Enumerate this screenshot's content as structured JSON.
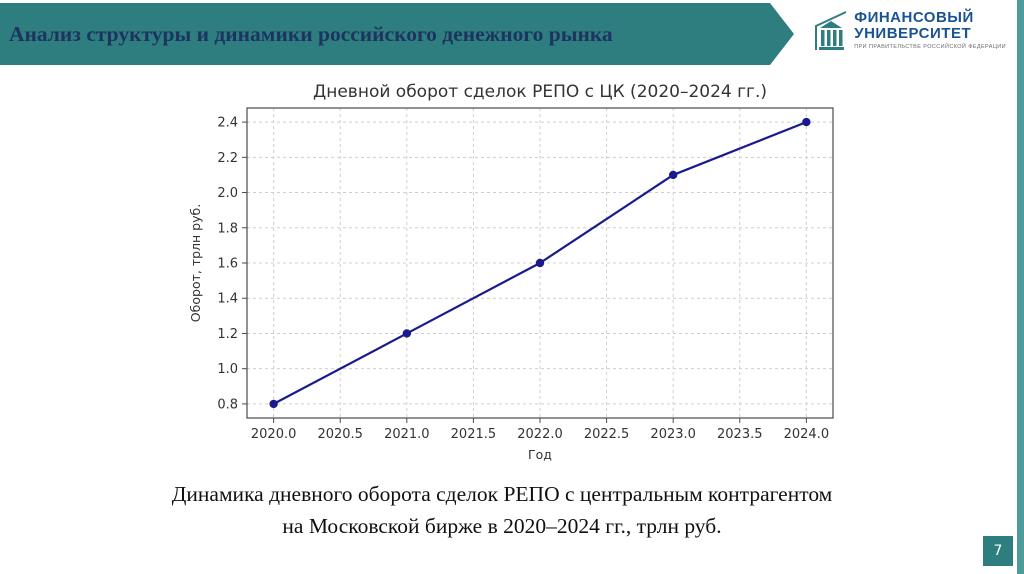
{
  "slide": {
    "title": "Анализ структуры и динамики российского денежного рынка",
    "page_number": "7",
    "accent_color": "#2e7d7f"
  },
  "header_logo": {
    "line1": "ФИНАНСОВЫЙ",
    "line2": "УНИВЕРСИТЕТ",
    "subtitle": "ПРИ ПРАВИТЕЛЬСТВЕ РОССИЙСКОЙ ФЕДЕРАЦИИ"
  },
  "caption": {
    "line1": "Динамика дневного оборота сделок РЕПО с центральным контрагентом",
    "line2": "на Московской бирже в 2020–2024 гг., трлн руб."
  },
  "chart_data": {
    "type": "line",
    "title": "Дневной оборот сделок РЕПО с ЦК (2020–2024 гг.)",
    "x": [
      2020,
      2021,
      2022,
      2023,
      2024
    ],
    "values": [
      0.8,
      1.2,
      1.6,
      2.1,
      2.4
    ],
    "xlabel": "Год",
    "ylabel": "Оборот, трлн руб.",
    "xlim": [
      2019.8,
      2024.2
    ],
    "ylim": [
      0.72,
      2.48
    ],
    "xticks": [
      2020.0,
      2020.5,
      2021.0,
      2021.5,
      2022.0,
      2022.5,
      2023.0,
      2023.5,
      2024.0
    ],
    "yticks": [
      0.8,
      1.0,
      1.2,
      1.4,
      1.6,
      1.8,
      2.0,
      2.2,
      2.4
    ],
    "grid": true,
    "grid_style": "dashed",
    "legend": "none",
    "line_color": "#1a1a8e",
    "marker": "circle"
  }
}
